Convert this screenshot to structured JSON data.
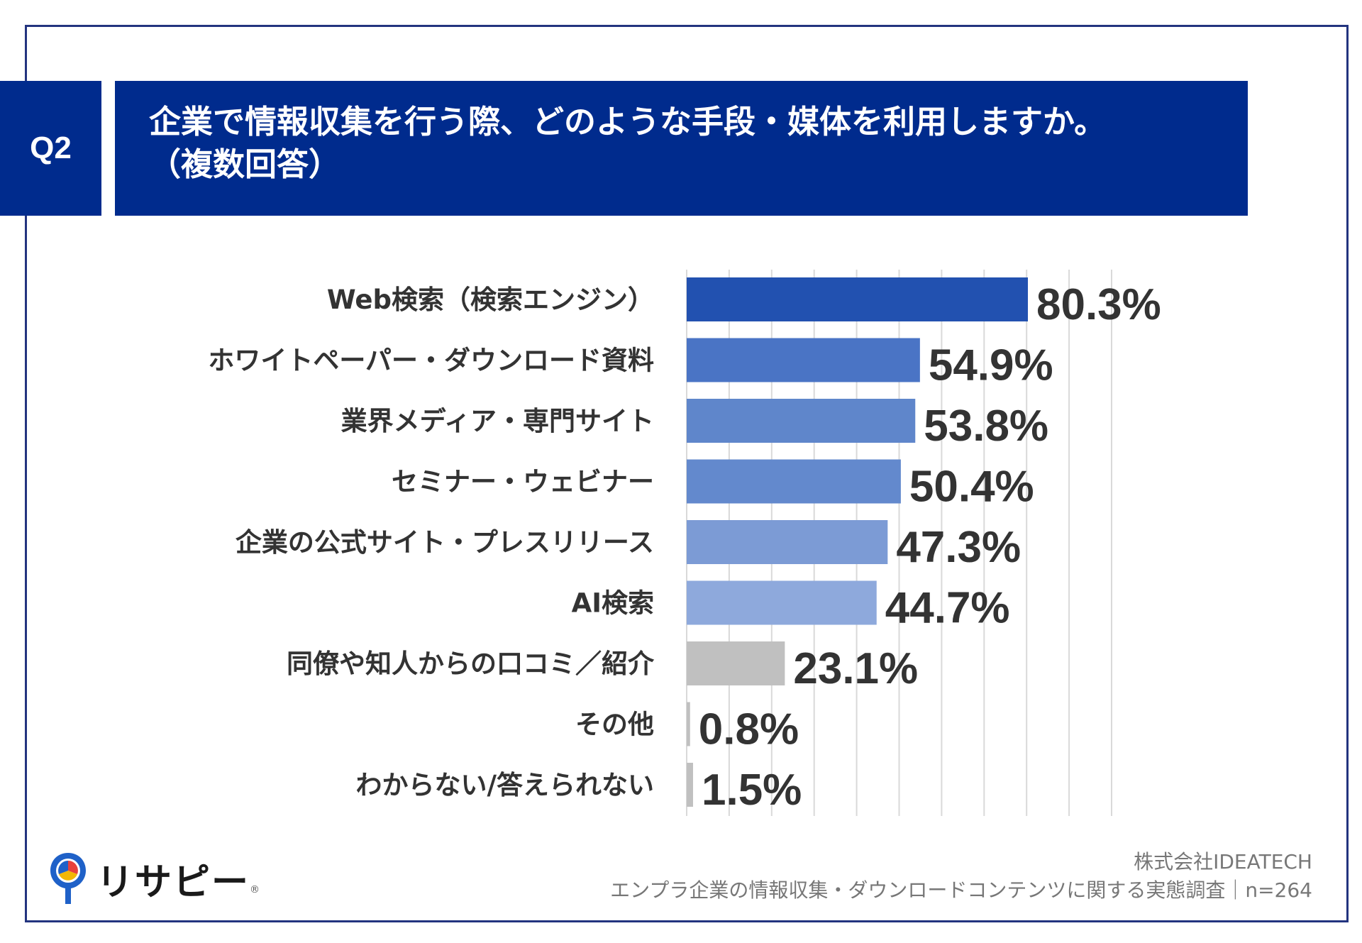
{
  "question": {
    "badge": "Q2",
    "title_line1": "企業で情報収集を行う際、どのような手段・媒体を利用しますか。",
    "title_line2": "（複数回答）"
  },
  "chart_data": {
    "type": "bar",
    "orientation": "horizontal",
    "categories": [
      "Web検索（検索エンジン）",
      "ホワイトペーパー・ダウンロード資料",
      "業界メディア・専門サイト",
      "セミナー・ウェビナー",
      "企業の公式サイト・プレスリリース",
      "AI検索",
      "同僚や知人からの口コミ／紹介",
      "その他",
      "わからない/答えられない"
    ],
    "values": [
      80.3,
      54.9,
      53.8,
      50.4,
      47.3,
      44.7,
      23.1,
      0.8,
      1.5
    ],
    "value_labels": [
      "80.3%",
      "54.9%",
      "53.8%",
      "50.4%",
      "47.3%",
      "44.7%",
      "23.1%",
      "0.8%",
      "1.5%"
    ],
    "colors": [
      "#2251b0",
      "#4a74c5",
      "#5f86cb",
      "#6389cd",
      "#7c9bd5",
      "#8ea9dc",
      "#c0c0c0",
      "#c0c0c0",
      "#c0c0c0"
    ],
    "xlim": [
      0,
      100
    ],
    "grid": true,
    "legend": "none"
  },
  "footer": {
    "logo_text": "リサピー",
    "logo_mark": "®",
    "company": "株式会社IDEATECH",
    "survey": "エンプラ企業の情報収集・ダウンロードコンテンツに関する実態調査｜n=264"
  }
}
